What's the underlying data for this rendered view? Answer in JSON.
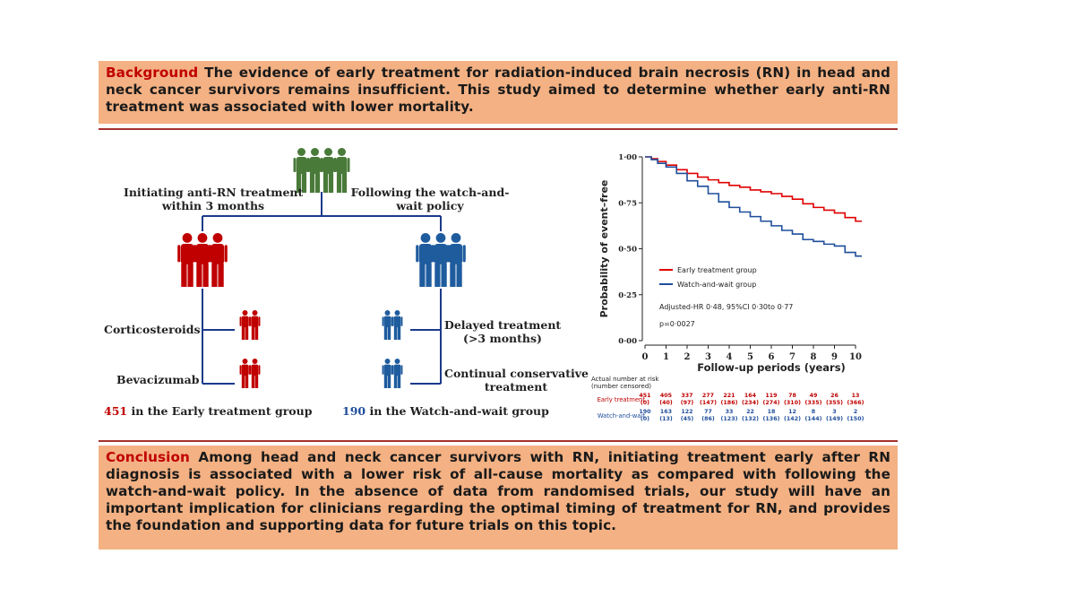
{
  "background": {
    "heading": "Background",
    "text": " The evidence of early treatment for radiation-induced brain necrosis (RN) in head and neck cancer survivors remains insufficient. This study aimed to determine whether early anti-RN treatment was associated with lower mortality."
  },
  "conclusion": {
    "heading": "Conclusion",
    "text": " Among head and neck cancer survivors with RN, initiating treatment early after RN diagnosis is associated with a lower risk of all-cause mortality as compared with following the watch-and-wait policy. In the absence of data from randomised trials, our study will have an important implication for clinicians regarding the optimal timing of treatment for RN, and provides the foundation and supporting data for future trials on this topic."
  },
  "flow": {
    "left_branch_line1": "Initiating anti-RN treatment",
    "left_branch_line2": "within 3 months",
    "right_branch_line1": "Following the watch-and-",
    "right_branch_line2": "wait policy",
    "early_option1": "Corticosteroids",
    "early_option2": "Bevacizumab",
    "wait_option1_line1": "Delayed treatment",
    "wait_option1_line2": "(>3 months)",
    "wait_option2_line1": "Continual conservative",
    "wait_option2_line2": "treatment",
    "early_count": "451",
    "early_count_label": " in the Early treatment group",
    "wait_count": "190",
    "wait_count_label": " in the Watch-and-wait group",
    "colors": {
      "all": "#4a7a3a",
      "early": "#c00000",
      "wait": "#1f5c9e",
      "line": "#1a3a8a"
    }
  },
  "chart_data": {
    "type": "line",
    "ylabel": "Probability of event–free",
    "xlabel": "Follow-up periods (years)",
    "xlim": [
      0,
      10
    ],
    "ylim": [
      0,
      1
    ],
    "x_ticks": [
      "0",
      "1",
      "2",
      "3",
      "4",
      "5",
      "6",
      "7",
      "8",
      "9",
      "10"
    ],
    "y_ticks": [
      "0·00",
      "0·25",
      "0·50",
      "0·75",
      "1·00"
    ],
    "legend_position": "center-right",
    "series": [
      {
        "name": "Early treatment group",
        "color": "#e00000",
        "points": [
          [
            0,
            1.0
          ],
          [
            0.3,
            0.99
          ],
          [
            0.6,
            0.975
          ],
          [
            1,
            0.955
          ],
          [
            1.5,
            0.93
          ],
          [
            2,
            0.91
          ],
          [
            2.5,
            0.89
          ],
          [
            3,
            0.875
          ],
          [
            3.5,
            0.86
          ],
          [
            4,
            0.845
          ],
          [
            4.5,
            0.835
          ],
          [
            5,
            0.82
          ],
          [
            5.5,
            0.81
          ],
          [
            6,
            0.8
          ],
          [
            6.5,
            0.785
          ],
          [
            7,
            0.77
          ],
          [
            7.5,
            0.745
          ],
          [
            8,
            0.725
          ],
          [
            8.5,
            0.71
          ],
          [
            9,
            0.695
          ],
          [
            9.5,
            0.67
          ],
          [
            10,
            0.65
          ],
          [
            10.3,
            0.65
          ]
        ]
      },
      {
        "name": "Watch-and-wait group",
        "color": "#1f4e9b",
        "points": [
          [
            0,
            1.0
          ],
          [
            0.3,
            0.985
          ],
          [
            0.6,
            0.965
          ],
          [
            1,
            0.945
          ],
          [
            1.5,
            0.91
          ],
          [
            2,
            0.87
          ],
          [
            2.5,
            0.84
          ],
          [
            3,
            0.8
          ],
          [
            3.5,
            0.755
          ],
          [
            4,
            0.725
          ],
          [
            4.5,
            0.7
          ],
          [
            5,
            0.675
          ],
          [
            5.5,
            0.65
          ],
          [
            6,
            0.625
          ],
          [
            6.5,
            0.6
          ],
          [
            7,
            0.58
          ],
          [
            7.5,
            0.55
          ],
          [
            8,
            0.54
          ],
          [
            8.5,
            0.525
          ],
          [
            9,
            0.515
          ],
          [
            9.5,
            0.48
          ],
          [
            10,
            0.46
          ],
          [
            10.3,
            0.46
          ]
        ]
      }
    ],
    "annotations": [
      "Adjusted-HR 0·48, 95%CI 0·30to 0·77",
      "p=0·0027"
    ],
    "risk_table": {
      "title_line1": "Actual number at risk",
      "title_line2": "(number censored)",
      "rows": [
        {
          "label": "Early treatment",
          "color": "#c00000",
          "at_risk": [
            "451",
            "405",
            "337",
            "277",
            "221",
            "164",
            "119",
            "78",
            "49",
            "26",
            "13"
          ],
          "censored": [
            "(0)",
            "(40)",
            "(97)",
            "(147)",
            "(186)",
            "(234)",
            "(274)",
            "(310)",
            "(335)",
            "(355)",
            "(366)"
          ]
        },
        {
          "label": "Watch-and-wait",
          "color": "#1f4e9b",
          "at_risk": [
            "190",
            "163",
            "122",
            "77",
            "33",
            "22",
            "18",
            "12",
            "8",
            "3",
            "2"
          ],
          "censored": [
            "(0)",
            "(13)",
            "(45)",
            "(86)",
            "(123)",
            "(132)",
            "(136)",
            "(142)",
            "(144)",
            "(149)",
            "(150)"
          ]
        }
      ]
    }
  }
}
